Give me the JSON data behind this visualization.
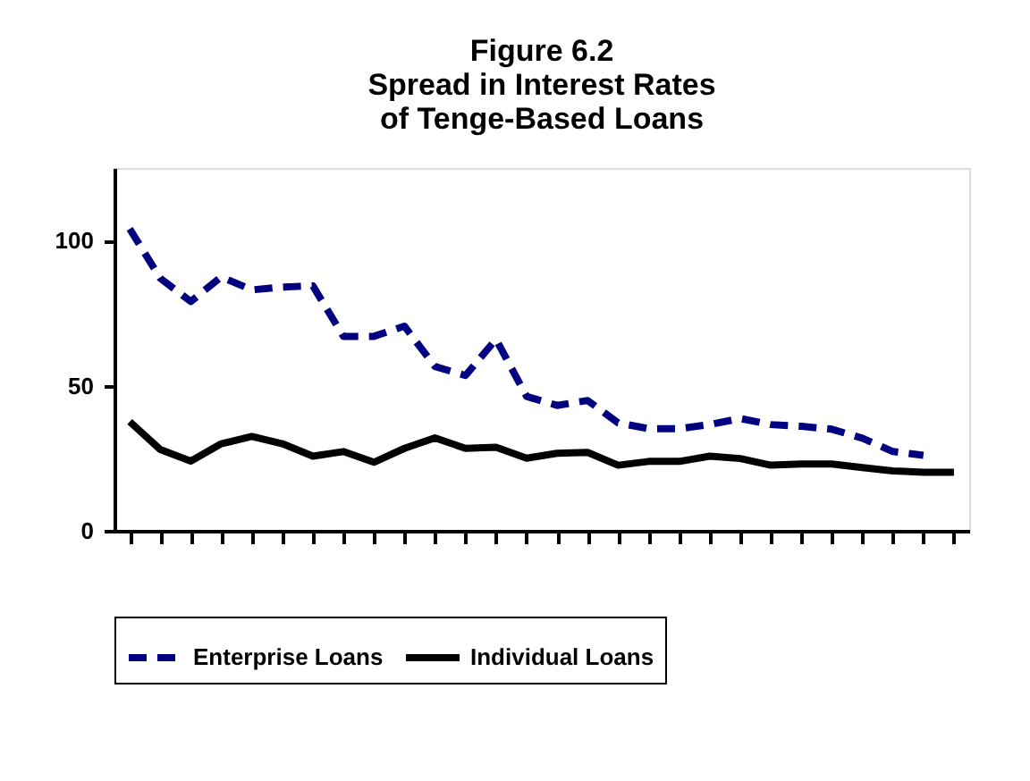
{
  "chart_data": {
    "type": "line",
    "title": [
      "Figure 6.2",
      "Spread in Interest Rates",
      "of Tenge-Based Loans"
    ],
    "categories": [
      null,
      null,
      null,
      null,
      null,
      null,
      null,
      null,
      null,
      null,
      null,
      null,
      null,
      null,
      null,
      null,
      null,
      null,
      null,
      null,
      null,
      null,
      null,
      null,
      null,
      null,
      null,
      null
    ],
    "series": [
      {
        "name": "Enterprise Loans",
        "color": "#000080",
        "line_style": "dashed",
        "values": [
          104,
          87,
          79,
          87.5,
          83,
          84,
          84.4,
          67,
          67,
          70.5,
          56.6,
          53.5,
          66,
          46.3,
          43.2,
          44.9,
          37.2,
          35.2,
          35.2,
          36.6,
          38.7,
          36.6,
          36,
          35,
          31.9,
          27.3,
          26,
          null
        ]
      },
      {
        "name": "Individual Loans",
        "color": "#000000",
        "line_style": "solid",
        "values": [
          37.6,
          28,
          24,
          30,
          32.5,
          30,
          25.7,
          27.3,
          23.6,
          28.4,
          32,
          28.4,
          28.8,
          25,
          26.7,
          27,
          22.6,
          23.9,
          23.9,
          25.7,
          24.9,
          22.6,
          23,
          23,
          21.8,
          20.6,
          20.2,
          20.2
        ]
      }
    ],
    "ylim": [
      0,
      125
    ],
    "yticks": [
      0,
      50,
      100
    ],
    "grid": false,
    "legend": "bottom",
    "tick_labels": "y",
    "marker": "none"
  }
}
